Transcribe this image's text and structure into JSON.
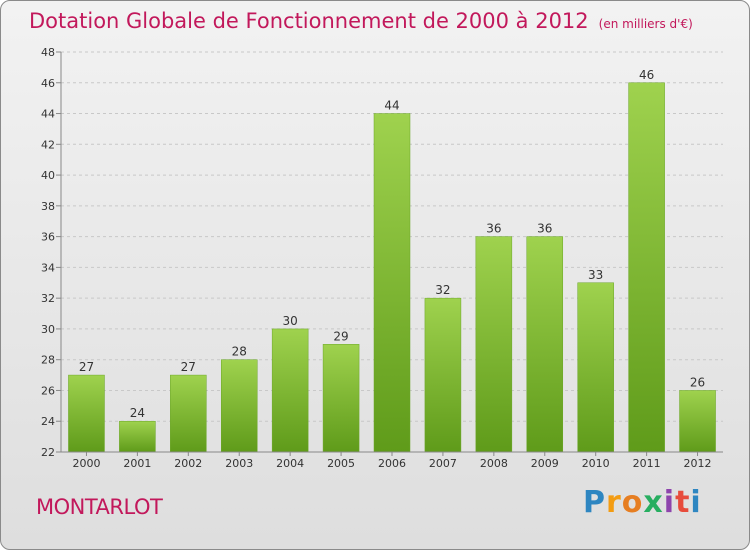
{
  "title": "Dotation Globale de Fonctionnement de 2000 à 2012",
  "unit": "(en milliers d'€)",
  "commune": "MONTARLOT",
  "logo": {
    "letters": [
      "P",
      "r",
      "o",
      "x",
      "i",
      "t",
      "i"
    ],
    "colors": [
      "#2e86c1",
      "#f39c12",
      "#e67e22",
      "#27ae60",
      "#8e44ad",
      "#e74c3c",
      "#2e86c1"
    ]
  },
  "chart_data": {
    "type": "bar",
    "title": "Dotation Globale de Fonctionnement de 2000 à 2012",
    "xlabel": "",
    "ylabel": "",
    "categories": [
      "2000",
      "2001",
      "2002",
      "2003",
      "2004",
      "2005",
      "2006",
      "2007",
      "2008",
      "2009",
      "2010",
      "2011",
      "2012"
    ],
    "values": [
      27,
      24,
      27,
      28,
      30,
      29,
      44,
      32,
      36,
      36,
      33,
      46,
      26
    ],
    "ylim": [
      22,
      48
    ],
    "yticks": [
      22,
      24,
      26,
      28,
      30,
      32,
      34,
      36,
      38,
      40,
      42,
      44,
      46,
      48
    ],
    "grid": true,
    "bar_color": "#7cb82f"
  }
}
